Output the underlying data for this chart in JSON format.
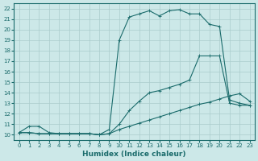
{
  "xlabel": "Humidex (Indice chaleur)",
  "xlim": [
    -0.5,
    23.5
  ],
  "ylim": [
    9.5,
    22.5
  ],
  "xticks": [
    0,
    1,
    2,
    3,
    4,
    5,
    6,
    7,
    8,
    9,
    10,
    11,
    12,
    13,
    14,
    15,
    16,
    17,
    18,
    19,
    20,
    21,
    22,
    23
  ],
  "yticks": [
    10,
    11,
    12,
    13,
    14,
    15,
    16,
    17,
    18,
    19,
    20,
    21,
    22
  ],
  "background_color": "#cce8e8",
  "grid_color": "#aacccc",
  "line_color": "#1a6b6b",
  "line1_x": [
    0,
    1,
    2,
    3,
    4,
    5,
    6,
    7,
    8,
    9,
    10,
    11,
    12,
    13,
    14,
    15,
    16,
    17,
    18,
    19,
    20,
    21,
    22,
    23
  ],
  "line1_y": [
    10.2,
    10.8,
    10.8,
    10.2,
    10.1,
    10.1,
    10.1,
    10.1,
    10.0,
    10.1,
    10.5,
    10.8,
    11.1,
    11.4,
    11.7,
    12.0,
    12.3,
    12.6,
    12.9,
    13.1,
    13.4,
    13.7,
    13.9,
    13.2
  ],
  "line2_x": [
    0,
    1,
    2,
    3,
    4,
    5,
    6,
    7,
    8,
    9,
    10,
    11,
    12,
    13,
    14,
    15,
    16,
    17,
    18,
    19,
    20,
    21,
    22,
    23
  ],
  "line2_y": [
    10.2,
    10.2,
    10.1,
    10.1,
    10.1,
    10.1,
    10.1,
    10.1,
    10.0,
    10.1,
    11.0,
    12.3,
    13.2,
    14.0,
    14.2,
    14.5,
    14.8,
    15.2,
    17.5,
    17.5,
    17.5,
    13.0,
    12.8,
    12.8
  ],
  "line3_x": [
    0,
    1,
    2,
    3,
    4,
    5,
    6,
    7,
    8,
    9,
    10,
    11,
    12,
    13,
    14,
    15,
    16,
    17,
    18,
    19,
    20,
    21,
    22,
    23
  ],
  "line3_y": [
    10.2,
    10.2,
    10.1,
    10.1,
    10.1,
    10.1,
    10.1,
    10.1,
    10.0,
    10.5,
    19.0,
    21.2,
    21.5,
    21.8,
    21.3,
    21.8,
    21.9,
    21.5,
    21.5,
    20.5,
    20.3,
    13.3,
    13.0,
    12.8
  ]
}
